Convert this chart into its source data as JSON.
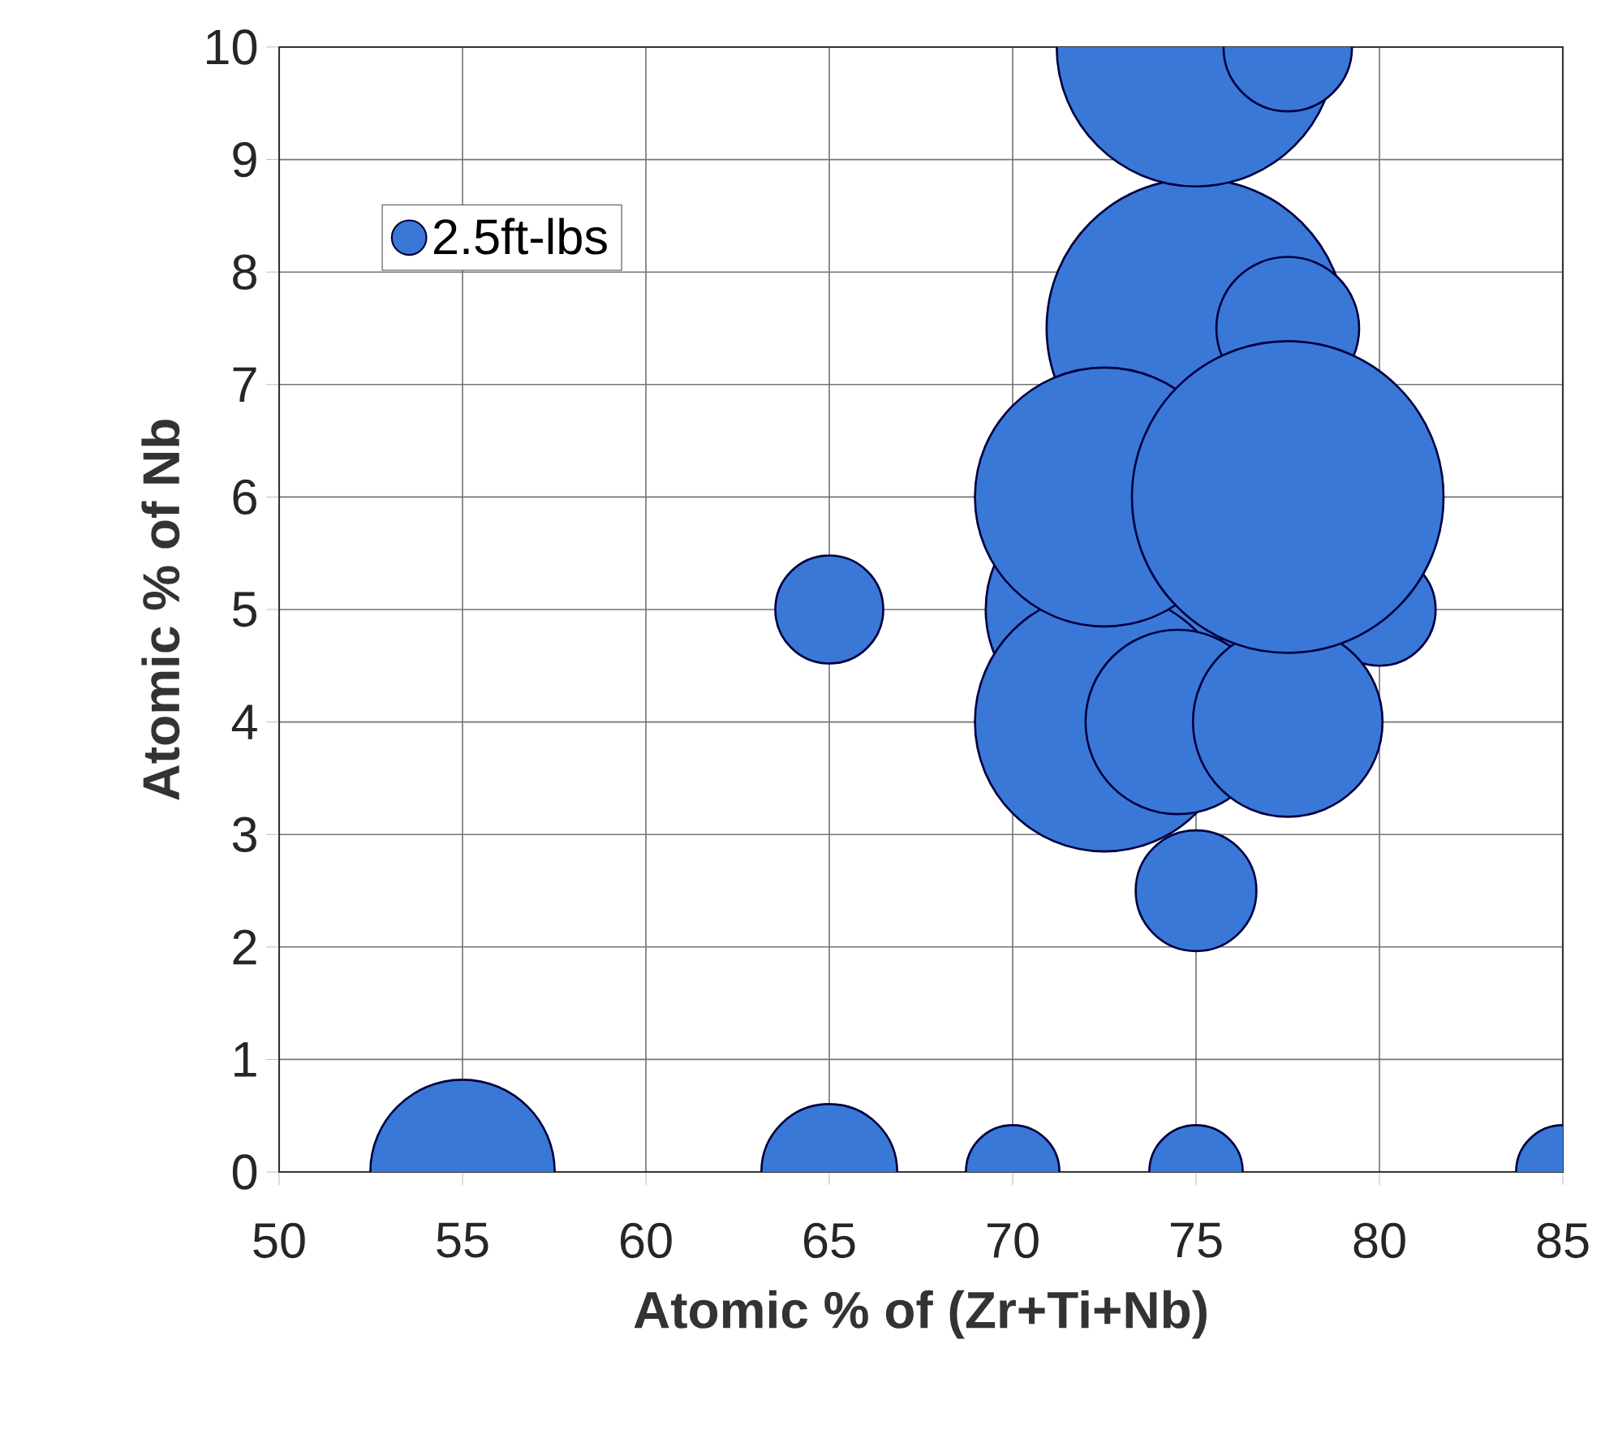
{
  "chart_data": {
    "type": "bubble",
    "xlabel": "Atomic % of (Zr+Ti+Nb)",
    "ylabel": "Atomic % of Nb",
    "series": [
      {
        "name": "2.5ft-lbs",
        "color": "#3a78d8",
        "x": [
          55,
          65,
          70,
          75,
          85,
          65,
          75,
          75,
          72.5,
          80,
          75,
          72.5,
          74.5,
          77.5,
          75,
          77.5,
          72.5,
          77.5,
          75,
          77.5
        ],
        "values": [
          0,
          0,
          0,
          0,
          0,
          5,
          2.5,
          5,
          5,
          5,
          6,
          4,
          4,
          4,
          7.5,
          7.5,
          6,
          6,
          10,
          10
        ],
        "sizes": [
          0.35,
          0.19,
          0.09,
          0.09,
          0.09,
          0.12,
          0.15,
          0.88,
          0.58,
          0.13,
          0.86,
          0.69,
          0.35,
          0.37,
          0.92,
          0.21,
          0.69,
          1,
          0.8,
          0.17
        ]
      }
    ],
    "xlim": [
      50,
      85
    ],
    "ylim": [
      0,
      10
    ],
    "xticks": [
      50,
      55,
      60,
      65,
      70,
      75,
      80,
      85
    ],
    "yticks": [
      0,
      1,
      2,
      3,
      4,
      5,
      6,
      7,
      8,
      9,
      10
    ],
    "grid": true,
    "legend": "top left"
  }
}
